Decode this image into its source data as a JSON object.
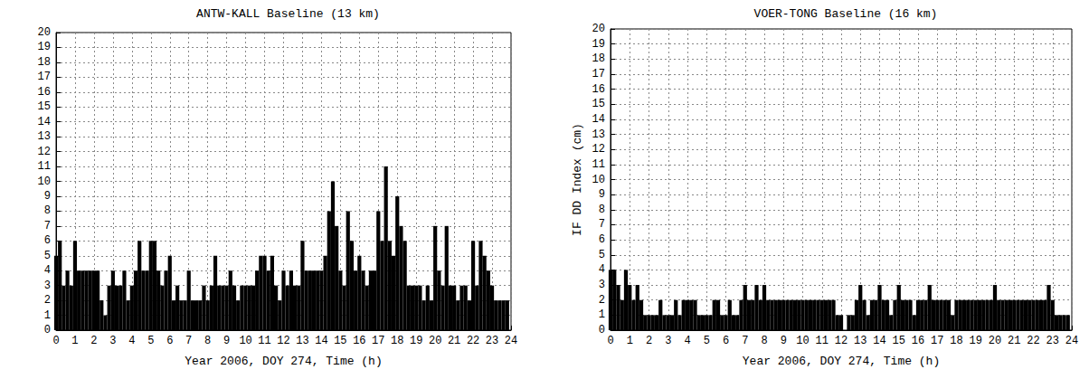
{
  "chart_data": [
    {
      "type": "bar",
      "title": "ANTW-KALL Baseline (13 km)",
      "xlabel": "Year 2006, DOY 274, Time (h)",
      "color": "#000000",
      "grid": true,
      "x": [
        0,
        0.2,
        0.4,
        0.6,
        0.8,
        1,
        1.2,
        1.4,
        1.6,
        1.8,
        2,
        2.2,
        2.4,
        2.6,
        2.8,
        3,
        3.2,
        3.4,
        3.6,
        3.8,
        4,
        4.2,
        4.4,
        4.6,
        4.8,
        5,
        5.2,
        5.4,
        5.6,
        5.8,
        6,
        6.2,
        6.4,
        6.6,
        6.8,
        7,
        7.2,
        7.4,
        7.6,
        7.8,
        8,
        8.2,
        8.4,
        8.6,
        8.8,
        9,
        9.2,
        9.4,
        9.6,
        9.8,
        10,
        10.2,
        10.4,
        10.6,
        10.8,
        11,
        11.2,
        11.4,
        11.6,
        11.8,
        12,
        12.2,
        12.4,
        12.6,
        12.8,
        13,
        13.2,
        13.4,
        13.6,
        13.8,
        14,
        14.2,
        14.4,
        14.6,
        14.8,
        15,
        15.2,
        15.4,
        15.6,
        15.8,
        16,
        16.2,
        16.4,
        16.6,
        16.8,
        17,
        17.2,
        17.4,
        17.6,
        17.8,
        18,
        18.2,
        18.4,
        18.6,
        18.8,
        19,
        19.2,
        19.4,
        19.6,
        19.8,
        20,
        20.2,
        20.4,
        20.6,
        20.8,
        21,
        21.2,
        21.4,
        21.6,
        21.8,
        22,
        22.2,
        22.4,
        22.6,
        22.8,
        23,
        23.2,
        23.4,
        23.6,
        23.8
      ],
      "values": [
        5,
        6,
        3,
        4,
        3,
        6,
        4,
        4,
        4,
        4,
        4,
        4,
        2,
        1,
        3,
        4,
        3,
        3,
        4,
        2,
        3,
        4,
        6,
        4,
        4,
        6,
        6,
        4,
        3,
        4,
        5,
        2,
        3,
        2,
        2,
        4,
        2,
        2,
        2,
        3,
        2,
        3,
        5,
        3,
        3,
        3,
        4,
        3,
        2,
        3,
        3,
        3,
        3,
        4,
        5,
        5,
        4,
        5,
        3,
        2,
        4,
        3,
        4,
        3,
        3,
        6,
        4,
        4,
        4,
        4,
        4,
        5,
        8,
        10,
        7,
        4,
        3,
        8,
        6,
        4,
        5,
        4,
        3,
        4,
        4,
        8,
        6,
        11,
        6,
        5,
        9,
        7,
        6,
        3,
        3,
        3,
        3,
        2,
        3,
        2,
        7,
        4,
        3,
        7,
        3,
        3,
        2,
        3,
        3,
        2,
        6,
        3,
        6,
        5,
        4,
        3,
        2,
        2,
        2,
        2
      ],
      "xlim": [
        0,
        24
      ],
      "xticks": [
        0,
        1,
        2,
        3,
        4,
        5,
        6,
        7,
        8,
        9,
        10,
        11,
        12,
        13,
        14,
        15,
        16,
        17,
        18,
        19,
        20,
        21,
        22,
        23,
        24
      ],
      "ylim": [
        0,
        20
      ],
      "yticks": [
        0,
        1,
        2,
        3,
        4,
        5,
        6,
        7,
        8,
        9,
        10,
        11,
        12,
        13,
        14,
        15,
        16,
        17,
        18,
        19,
        20
      ]
    },
    {
      "type": "bar",
      "title": "VOER-TONG Baseline (16 km)",
      "xlabel": "Year 2006, DOY 274, Time (h)",
      "ylabel": "IF DD Index (cm)",
      "color": "#000000",
      "grid": true,
      "x": [
        0,
        0.2,
        0.4,
        0.6,
        0.8,
        1,
        1.2,
        1.4,
        1.6,
        1.8,
        2,
        2.2,
        2.4,
        2.6,
        2.8,
        3,
        3.2,
        3.4,
        3.6,
        3.8,
        4,
        4.2,
        4.4,
        4.6,
        4.8,
        5,
        5.2,
        5.4,
        5.6,
        5.8,
        6,
        6.2,
        6.4,
        6.6,
        6.8,
        7,
        7.2,
        7.4,
        7.6,
        7.8,
        8,
        8.2,
        8.4,
        8.6,
        8.8,
        9,
        9.2,
        9.4,
        9.6,
        9.8,
        10,
        10.2,
        10.4,
        10.6,
        10.8,
        11,
        11.2,
        11.4,
        11.6,
        11.8,
        12,
        12.2,
        12.4,
        12.6,
        12.8,
        13,
        13.2,
        13.4,
        13.6,
        13.8,
        14,
        14.2,
        14.4,
        14.6,
        14.8,
        15,
        15.2,
        15.4,
        15.6,
        15.8,
        16,
        16.2,
        16.4,
        16.6,
        16.8,
        17,
        17.2,
        17.4,
        17.6,
        17.8,
        18,
        18.2,
        18.4,
        18.6,
        18.8,
        19,
        19.2,
        19.4,
        19.6,
        19.8,
        20,
        20.2,
        20.4,
        20.6,
        20.8,
        21,
        21.2,
        21.4,
        21.6,
        21.8,
        22,
        22.2,
        22.4,
        22.6,
        22.8,
        23,
        23.2,
        23.4,
        23.6,
        23.8
      ],
      "values": [
        4,
        4,
        3,
        2,
        4,
        3,
        2,
        3,
        2,
        1,
        1,
        1,
        1,
        2,
        1,
        1,
        1,
        2,
        1,
        2,
        2,
        2,
        2,
        1,
        1,
        1,
        1,
        2,
        2,
        1,
        1,
        2,
        1,
        1,
        2,
        3,
        2,
        2,
        3,
        2,
        3,
        2,
        2,
        2,
        2,
        2,
        2,
        2,
        2,
        2,
        2,
        2,
        2,
        2,
        2,
        2,
        2,
        2,
        2,
        1,
        1,
        0,
        1,
        1,
        2,
        3,
        2,
        1,
        2,
        2,
        3,
        2,
        2,
        1,
        2,
        3,
        2,
        2,
        2,
        1,
        2,
        2,
        2,
        3,
        2,
        2,
        2,
        2,
        2,
        1,
        2,
        2,
        2,
        2,
        2,
        2,
        2,
        2,
        2,
        2,
        3,
        2,
        2,
        2,
        2,
        2,
        2,
        2,
        2,
        2,
        2,
        2,
        2,
        2,
        3,
        2,
        1,
        1,
        1,
        1
      ],
      "xlim": [
        0,
        24
      ],
      "xticks": [
        0,
        1,
        2,
        3,
        4,
        5,
        6,
        7,
        8,
        9,
        10,
        11,
        12,
        13,
        14,
        15,
        16,
        17,
        18,
        19,
        20,
        21,
        22,
        23,
        24
      ],
      "ylim": [
        0,
        20
      ],
      "yticks": [
        0,
        1,
        2,
        3,
        4,
        5,
        6,
        7,
        8,
        9,
        10,
        11,
        12,
        13,
        14,
        15,
        16,
        17,
        18,
        19,
        20
      ]
    }
  ]
}
